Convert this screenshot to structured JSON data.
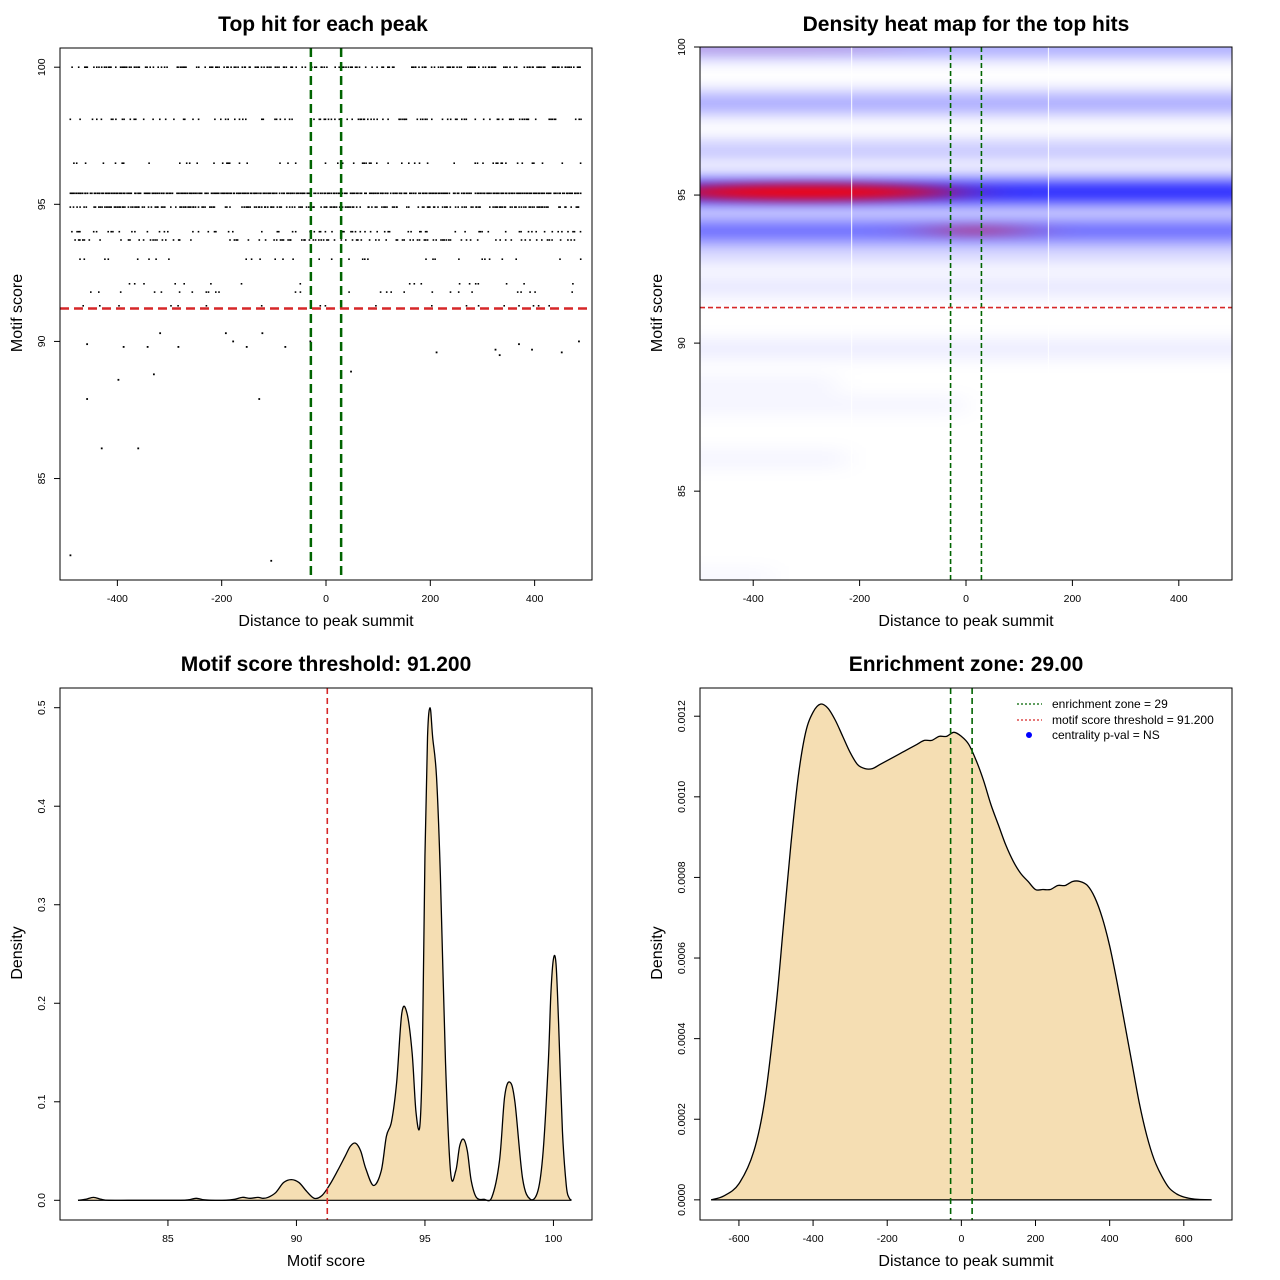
{
  "chart_data": [
    {
      "type": "scatter",
      "title": "Top hit for each peak",
      "xlabel": "Distance to peak summit",
      "ylabel": "Motif score",
      "xlim": [
        -510,
        510
      ],
      "ylim": [
        81.3,
        100.7
      ],
      "xticks": [
        -400,
        -200,
        0,
        200,
        400
      ],
      "yticks": [
        85,
        90,
        95,
        100
      ],
      "score_levels": [
        100,
        98.1,
        96.5,
        95.4,
        94.9,
        94.0,
        93.7,
        93.0,
        92.1,
        91.8,
        91.3
      ],
      "outliers": [
        {
          "x": -458,
          "y": 89.9
        },
        {
          "x": -388,
          "y": 89.8
        },
        {
          "x": -342,
          "y": 89.8
        },
        {
          "x": -283,
          "y": 89.8
        },
        {
          "x": -318,
          "y": 90.3
        },
        {
          "x": -192,
          "y": 90.3
        },
        {
          "x": -178,
          "y": 90.0
        },
        {
          "x": -152,
          "y": 89.8
        },
        {
          "x": -122,
          "y": 90.3
        },
        {
          "x": -78,
          "y": 89.8
        },
        {
          "x": -30,
          "y": 90.0
        },
        {
          "x": 212,
          "y": 89.6
        },
        {
          "x": 325,
          "y": 89.7
        },
        {
          "x": 333,
          "y": 89.5
        },
        {
          "x": 370,
          "y": 89.9
        },
        {
          "x": 395,
          "y": 89.7
        },
        {
          "x": 452,
          "y": 89.6
        },
        {
          "x": 485,
          "y": 90.0
        },
        {
          "x": 48,
          "y": 88.9
        },
        {
          "x": -398,
          "y": 88.6
        },
        {
          "x": -330,
          "y": 88.8
        },
        {
          "x": -458,
          "y": 87.9
        },
        {
          "x": -128,
          "y": 87.9
        },
        {
          "x": -430,
          "y": 86.1
        },
        {
          "x": -360,
          "y": 86.1
        },
        {
          "x": -490,
          "y": 82.2
        },
        {
          "x": -105,
          "y": 82.0
        }
      ],
      "enrichment_lines_x": [
        -29,
        29
      ],
      "threshold_y": 91.2,
      "colors": {
        "points": "#000000",
        "zone": "#006400",
        "threshold": "#d62728"
      }
    },
    {
      "type": "heatmap",
      "title": "Density heat map for the top hits",
      "xlabel": "Distance to peak summit",
      "ylabel": "Motif score",
      "xlim": [
        -500,
        500
      ],
      "ylim": [
        82,
        100
      ],
      "xticks": [
        -400,
        -200,
        0,
        200,
        400
      ],
      "yticks": [
        85,
        90,
        95,
        100
      ],
      "bands": [
        {
          "score": 100,
          "x_from": -500,
          "x_to": 500,
          "intensity": 0.45,
          "hot_x": -390,
          "hot": 1.1
        },
        {
          "score": 98.1,
          "x_from": -500,
          "x_to": 500,
          "intensity": 0.45,
          "hot_x": -100,
          "hot": 0.5
        },
        {
          "score": 96.5,
          "x_from": -500,
          "x_to": 500,
          "intensity": 0.32,
          "hot_x": 400,
          "hot": 0.5
        },
        {
          "score": 95.1,
          "x_from": -500,
          "x_to": 500,
          "intensity": 0.95,
          "hot_x": -300,
          "hot": 2.2
        },
        {
          "score": 93.8,
          "x_from": -500,
          "x_to": 500,
          "intensity": 0.7,
          "hot_x": 20,
          "hot": 1.0
        },
        {
          "score": 93.0,
          "x_from": -500,
          "x_to": 500,
          "intensity": 0.22,
          "hot_x": 0,
          "hot": 0.3
        },
        {
          "score": 91.9,
          "x_from": -500,
          "x_to": 500,
          "intensity": 0.15,
          "hot_x": 0,
          "hot": 0.3
        },
        {
          "score": 89.8,
          "x_from": -500,
          "x_to": 500,
          "intensity": 0.12,
          "hot_x": 420,
          "hot": 0.6
        },
        {
          "score": 88.6,
          "x_from": -500,
          "x_to": -300,
          "intensity": 0.07,
          "hot_x": -400,
          "hot": 0.3
        },
        {
          "score": 87.9,
          "x_from": -500,
          "x_to": -60,
          "intensity": 0.07,
          "hot_x": -450,
          "hot": 0.3
        },
        {
          "score": 86.1,
          "x_from": -500,
          "x_to": -280,
          "intensity": 0.07,
          "hot_x": -420,
          "hot": 0.3
        },
        {
          "score": 82.1,
          "x_from": -500,
          "x_to": -420,
          "intensity": 0.05,
          "hot_x": -480,
          "hot": 0.3
        }
      ],
      "white_streaks_x": [
        -215,
        155
      ],
      "enrichment_lines_x": [
        -29,
        29
      ],
      "threshold_y": 91.2,
      "colors": {
        "low": "#ffffff",
        "mid": "#0000ff",
        "high": "#ff0000",
        "zone": "#006400",
        "threshold": "#d62728"
      }
    },
    {
      "type": "area",
      "title": "Motif score threshold: 91.200",
      "xlabel": "Motif score",
      "ylabel": "Density",
      "xlim": [
        80.8,
        101.5
      ],
      "ylim": [
        -0.02,
        0.52
      ],
      "xticks": [
        85,
        90,
        95,
        100
      ],
      "yticks": [
        0.0,
        0.1,
        0.2,
        0.3,
        0.4,
        0.5
      ],
      "ytick_labels": [
        "0.0",
        "0.1",
        "0.2",
        "0.3",
        "0.4",
        "0.5"
      ],
      "x": [
        81.5,
        81.8,
        82.1,
        82.4,
        82.7,
        83.5,
        84.5,
        85.5,
        85.8,
        86.1,
        86.4,
        86.7,
        87.2,
        87.6,
        87.9,
        88.2,
        88.5,
        88.7,
        88.9,
        89.2,
        89.5,
        89.8,
        90.1,
        90.4,
        90.7,
        91.0,
        91.3,
        91.6,
        91.9,
        92.1,
        92.3,
        92.5,
        92.7,
        93.0,
        93.3,
        93.5,
        93.7,
        93.9,
        94.1,
        94.3,
        94.5,
        94.65,
        94.8,
        94.9,
        95.0,
        95.1,
        95.2,
        95.3,
        95.45,
        95.6,
        95.8,
        96.0,
        96.2,
        96.35,
        96.5,
        96.65,
        96.8,
        97.0,
        97.3,
        97.6,
        97.9,
        98.1,
        98.3,
        98.5,
        98.8,
        99.1,
        99.4,
        99.6,
        99.8,
        99.9,
        100.0,
        100.1,
        100.2,
        100.35,
        100.5,
        100.6,
        100.7
      ],
      "y": [
        0,
        0.001,
        0.003,
        0.001,
        0,
        0,
        0,
        0,
        0.0005,
        0.002,
        0.0005,
        0,
        0,
        0.001,
        0.003,
        0.002,
        0.003,
        0.002,
        0.003,
        0.008,
        0.018,
        0.021,
        0.018,
        0.009,
        0.002,
        0.005,
        0.016,
        0.03,
        0.045,
        0.055,
        0.058,
        0.05,
        0.032,
        0.015,
        0.03,
        0.065,
        0.08,
        0.12,
        0.19,
        0.19,
        0.15,
        0.09,
        0.075,
        0.15,
        0.35,
        0.47,
        0.5,
        0.47,
        0.43,
        0.33,
        0.14,
        0.028,
        0.03,
        0.055,
        0.062,
        0.05,
        0.02,
        0.003,
        0.001,
        0.003,
        0.04,
        0.105,
        0.12,
        0.1,
        0.022,
        0.001,
        0.01,
        0.05,
        0.14,
        0.21,
        0.245,
        0.24,
        0.18,
        0.07,
        0.015,
        0.003,
        0
      ],
      "threshold_x": 91.2,
      "colors": {
        "fill": "#f5deb3",
        "line": "#000000",
        "threshold": "#d62728"
      }
    },
    {
      "type": "area",
      "title": "Enrichment zone: 29.00",
      "xlabel": "Distance to peak summit",
      "ylabel": "Density",
      "xlim": [
        -705,
        730
      ],
      "ylim": [
        -5e-05,
        0.00127
      ],
      "xticks": [
        -600,
        -400,
        -200,
        0,
        200,
        400,
        600
      ],
      "yticks": [
        0.0,
        0.0002,
        0.0004,
        0.0006,
        0.0008,
        0.001,
        0.0012
      ],
      "ytick_labels": [
        "0.0000",
        "0.0002",
        "0.0004",
        "0.0006",
        "0.0008",
        "0.0010",
        "0.0012"
      ],
      "x": [
        -675,
        -640,
        -600,
        -560,
        -530,
        -500,
        -480,
        -460,
        -440,
        -420,
        -400,
        -380,
        -360,
        -340,
        -320,
        -300,
        -280,
        -260,
        -240,
        -220,
        -200,
        -180,
        -160,
        -140,
        -120,
        -100,
        -80,
        -60,
        -40,
        -20,
        0,
        20,
        40,
        60,
        80,
        100,
        120,
        140,
        160,
        180,
        200,
        220,
        240,
        260,
        280,
        300,
        320,
        340,
        360,
        380,
        400,
        420,
        440,
        460,
        480,
        500,
        520,
        540,
        560,
        580,
        600,
        620,
        640,
        675
      ],
      "y": [
        0,
        1e-05,
        4e-05,
        0.00012,
        0.00025,
        0.00048,
        0.00068,
        0.00088,
        0.00105,
        0.00116,
        0.00121,
        0.00123,
        0.00122,
        0.00119,
        0.00115,
        0.00111,
        0.00108,
        0.00107,
        0.00107,
        0.00108,
        0.00109,
        0.0011,
        0.00111,
        0.00112,
        0.00113,
        0.00114,
        0.00114,
        0.00115,
        0.00115,
        0.00116,
        0.00115,
        0.00113,
        0.00109,
        0.00104,
        0.00098,
        0.00093,
        0.00088,
        0.00084,
        0.00081,
        0.00079,
        0.00077,
        0.00077,
        0.00077,
        0.00078,
        0.00078,
        0.00079,
        0.00079,
        0.00078,
        0.00075,
        0.0007,
        0.00063,
        0.00054,
        0.00044,
        0.00034,
        0.00024,
        0.00016,
        0.0001,
        6e-05,
        3e-05,
        1.5e-05,
        7e-06,
        3e-06,
        1e-06,
        0
      ],
      "enrichment_lines_x": [
        -29,
        29
      ],
      "legend": [
        {
          "label": "enrichment zone = 29",
          "color": "#006400",
          "style": "dotted-line"
        },
        {
          "label": "motif score threshold = 91.200",
          "color": "#d62728",
          "style": "dotted-line"
        },
        {
          "label": "centrality p-val = NS",
          "color": "#0000ff",
          "style": "point"
        }
      ],
      "legend_position": "top-right",
      "colors": {
        "fill": "#f5deb3",
        "line": "#000000",
        "zone": "#006400"
      }
    }
  ]
}
